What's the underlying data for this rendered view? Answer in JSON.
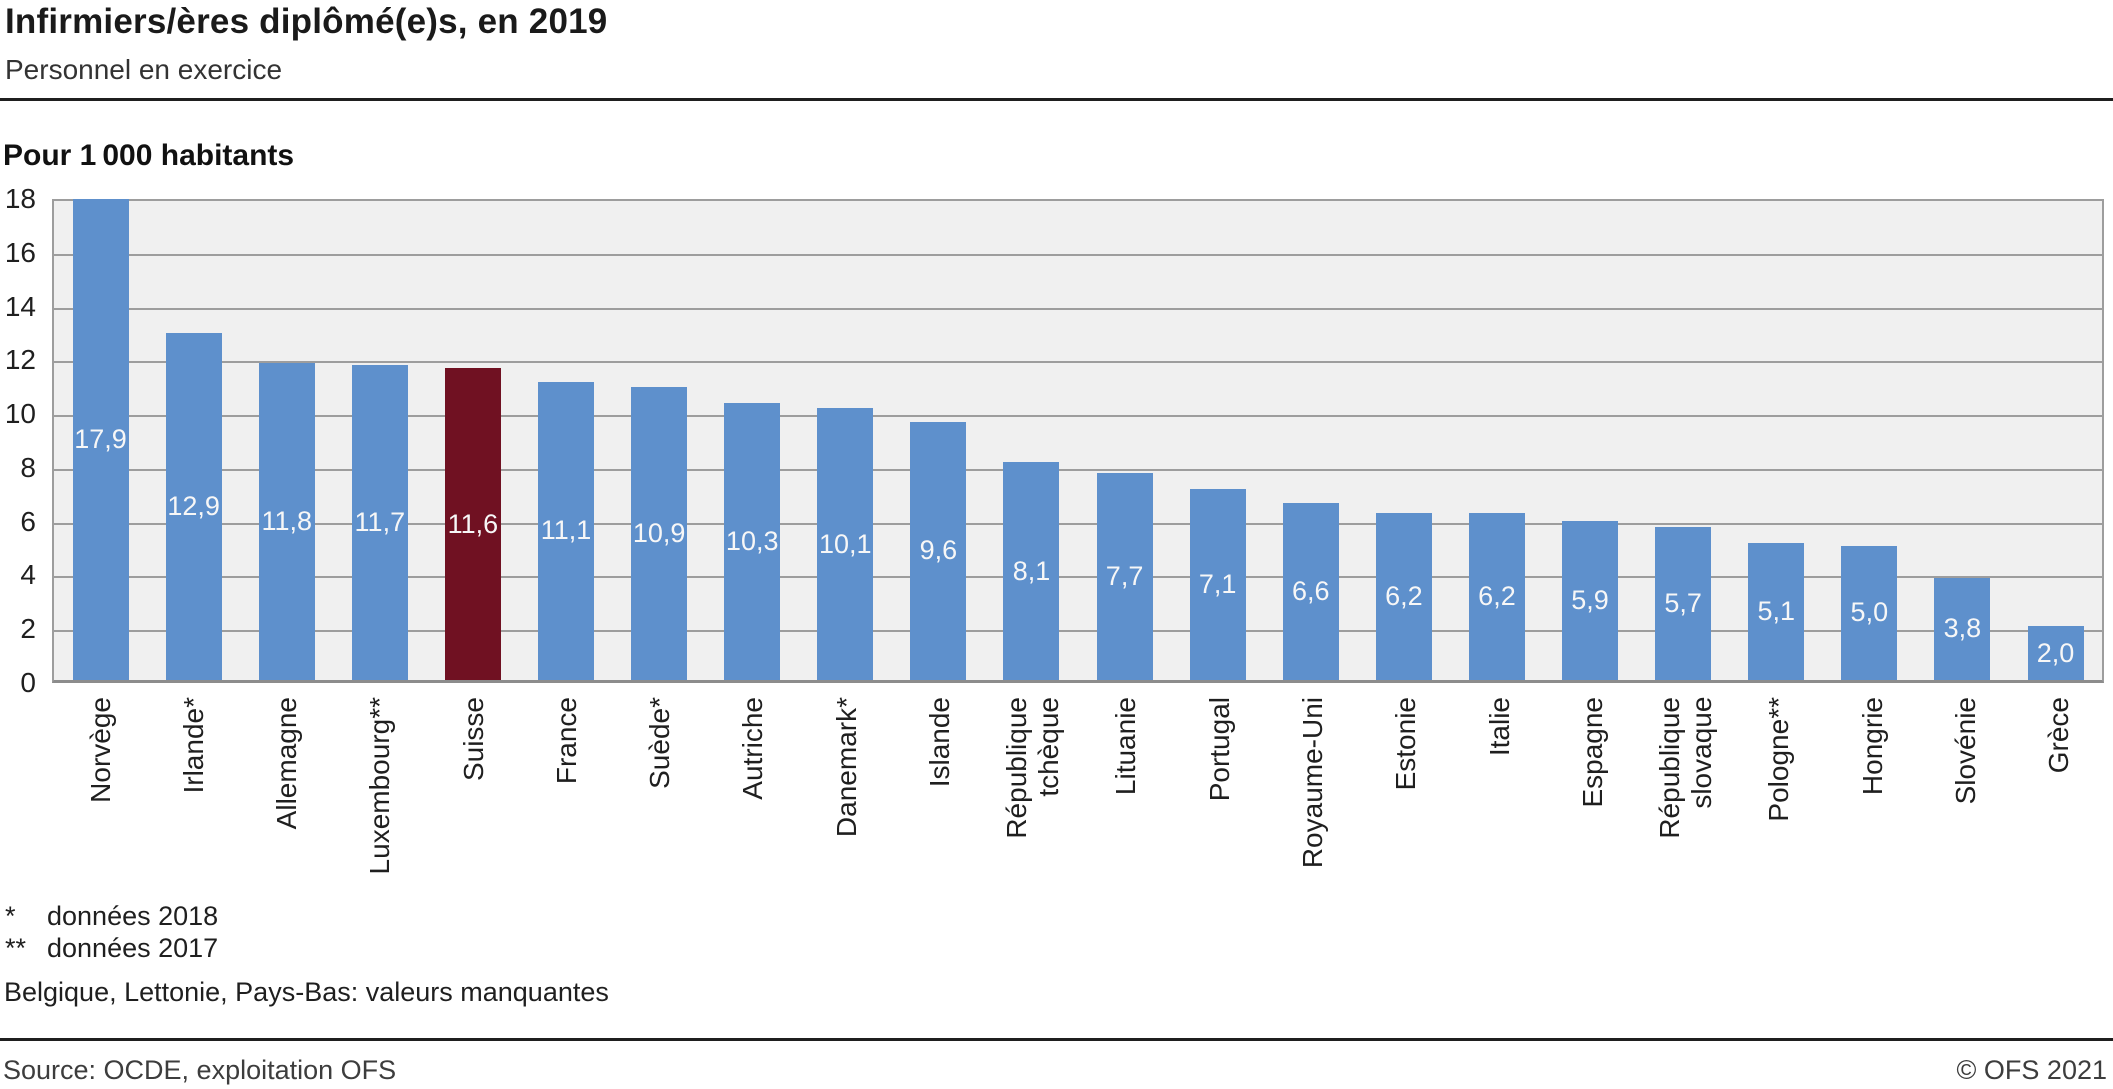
{
  "header": {
    "title": "Infirmiers/ères diplômé(e)s, en 2019",
    "subtitle": "Personnel en exercice"
  },
  "chart_data": {
    "type": "bar",
    "title": "Infirmiers/ères diplômé(e)s, en 2019",
    "subtitle": "Personnel en exercice",
    "unit_label": "Pour 1 000 habitants",
    "xlabel": "",
    "ylabel": "Pour 1 000 habitants",
    "ylim": [
      0,
      18
    ],
    "ytick_step": 2,
    "yticks": [
      "18",
      "16",
      "14",
      "12",
      "10",
      "8",
      "6",
      "4",
      "2",
      "0"
    ],
    "grid": true,
    "legend": "none",
    "categories": [
      "Norvège",
      "Irlande*",
      "Allemagne",
      "Luxembourg**",
      "Suisse",
      "France",
      "Suède*",
      "Autriche",
      "Danemark*",
      "Islande",
      "République\ntchèque",
      "Lituanie",
      "Portugal",
      "Royaume-Uni",
      "Estonie",
      "Italie",
      "Espagne",
      "République\nslovaque",
      "Pologne**",
      "Hongrie",
      "Slovénie",
      "Grèce"
    ],
    "values": [
      17.9,
      12.9,
      11.8,
      11.7,
      11.6,
      11.1,
      10.9,
      10.3,
      10.1,
      9.6,
      8.1,
      7.7,
      7.1,
      6.6,
      6.2,
      6.2,
      5.9,
      5.7,
      5.1,
      5.0,
      3.8,
      2.0
    ],
    "value_labels": [
      "17,9",
      "12,9",
      "11,8",
      "11,7",
      "11,6",
      "11,1",
      "10,9",
      "10,3",
      "10,1",
      "9,6",
      "8,1",
      "7,7",
      "7,1",
      "6,6",
      "6,2",
      "6,2",
      "5,9",
      "5,7",
      "5,1",
      "5,0",
      "3,8",
      "2,0"
    ],
    "highlight_index": 4,
    "highlight_category": "Suisse",
    "colors": {
      "bar": "#5e90cc",
      "highlight": "#701122",
      "plot_background": "#f0f0f0",
      "gridline": "#9d9d9d",
      "axis": "#8c8c8c",
      "value_label": "#f7f7f7"
    }
  },
  "footnotes": {
    "items": [
      {
        "marker": "*",
        "text": "données 2018"
      },
      {
        "marker": "**",
        "text": "données 2017"
      }
    ],
    "note": "Belgique, Lettonie, Pays-Bas: valeurs manquantes"
  },
  "footer": {
    "source": "Source: OCDE, exploitation OFS",
    "copyright": "© OFS 2021"
  }
}
